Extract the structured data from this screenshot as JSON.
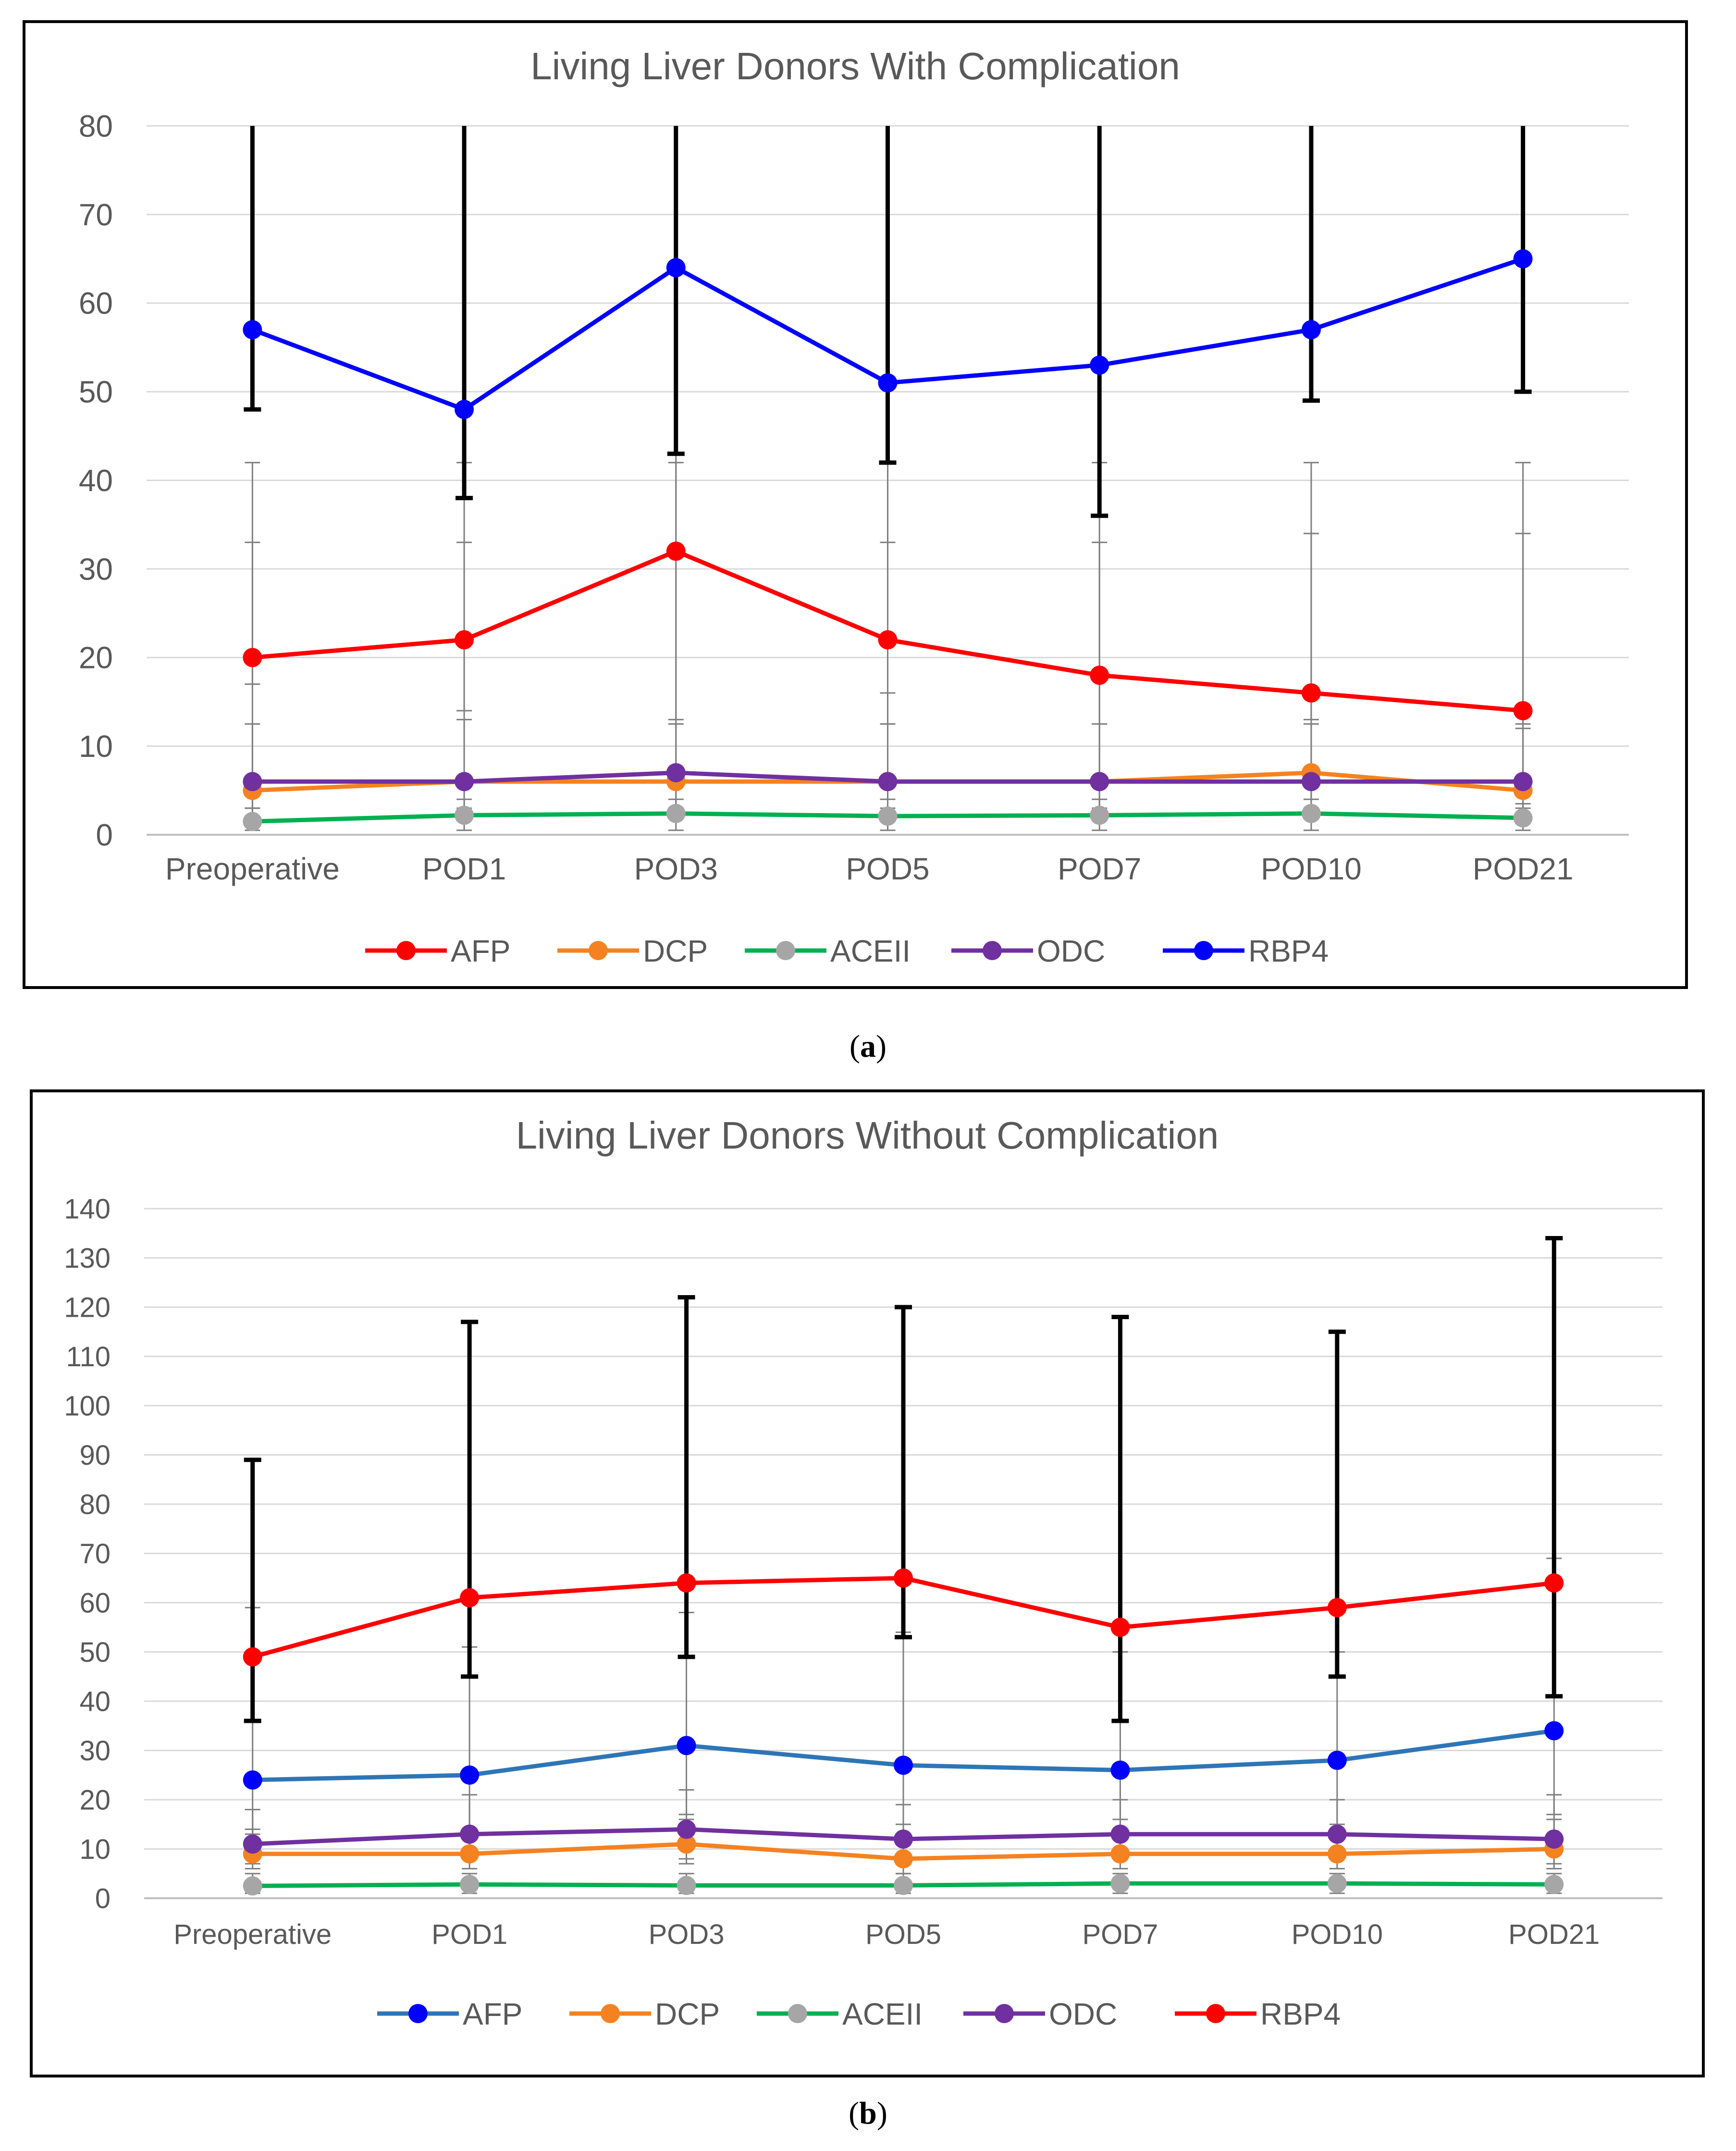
{
  "chart_data": [
    {
      "type": "line",
      "title": "Living Liver Donors With Complication",
      "categories": [
        "Preoperative",
        "POD1",
        "POD3",
        "POD5",
        "POD7",
        "POD10",
        "POD21"
      ],
      "ylim": [
        0,
        80
      ],
      "yticks": [
        0,
        10,
        20,
        30,
        40,
        50,
        60,
        70,
        80
      ],
      "grid": true,
      "legend": "bottom",
      "xlabel": "",
      "ylabel": "",
      "series": [
        {
          "name": "AFP",
          "color": "#ff0000",
          "values": [
            20,
            22,
            32,
            22,
            18,
            16,
            14
          ],
          "err_low": [
            17,
            14,
            13,
            16,
            12.5,
            13,
            12.5
          ],
          "err_high": [
            33,
            33,
            42,
            33,
            33,
            34,
            34
          ]
        },
        {
          "name": "DCP",
          "color": "#f58220",
          "values": [
            5,
            6,
            6,
            6,
            6,
            7,
            5
          ],
          "err_low": [
            3,
            3,
            3,
            3,
            3,
            3,
            3
          ],
          "err_high": [
            12.5,
            13,
            12.5,
            12.5,
            12.5,
            12.5,
            12
          ]
        },
        {
          "name": "ACEII",
          "color": "#00b050",
          "marker": "#a6a6a6",
          "values": [
            1.5,
            2.2,
            2.4,
            2.1,
            2.2,
            2.4,
            1.9
          ],
          "err_low": [
            0.5,
            0.5,
            0.5,
            0.5,
            0.5,
            0.5,
            0.5
          ],
          "err_high": [
            3,
            4,
            4,
            4,
            4,
            4,
            3.5
          ]
        },
        {
          "name": "ODC",
          "color": "#7030a0",
          "values": [
            6,
            6,
            7,
            6,
            6,
            6,
            6
          ],
          "err_low": [
            2,
            2,
            2,
            2,
            2,
            2,
            2
          ],
          "err_high": [
            42,
            42,
            43,
            42,
            42,
            42,
            42
          ]
        },
        {
          "name": "RBP4",
          "color": "#0000ff",
          "values": [
            57,
            48,
            64,
            51,
            53,
            57,
            65
          ],
          "err_low": [
            48,
            38,
            43,
            42,
            36,
            49,
            50
          ],
          "err_high": [
            80,
            80,
            80,
            80,
            80,
            80,
            80
          ]
        }
      ]
    },
    {
      "type": "line",
      "title": "Living Liver Donors Without Complication",
      "categories": [
        "Preoperative",
        "POD1",
        "POD3",
        "POD5",
        "POD7",
        "POD10",
        "POD21"
      ],
      "ylim": [
        0,
        140
      ],
      "yticks": [
        0,
        10,
        20,
        30,
        40,
        50,
        60,
        70,
        80,
        90,
        100,
        110,
        120,
        130,
        140
      ],
      "grid": true,
      "legend": "bottom",
      "xlabel": "",
      "ylabel": "",
      "series": [
        {
          "name": "AFP",
          "color": "#2e75b6",
          "marker": "#0000ff",
          "values": [
            24,
            25,
            31,
            27,
            26,
            28,
            34
          ],
          "err_low": [
            13,
            13,
            17,
            15,
            16,
            15,
            17
          ],
          "err_high": [
            59,
            51,
            58,
            54,
            50,
            50,
            69
          ]
        },
        {
          "name": "DCP",
          "color": "#f58220",
          "values": [
            9,
            9,
            11,
            8,
            9,
            9,
            10
          ],
          "err_low": [
            6,
            6,
            7,
            5,
            6,
            6,
            6
          ],
          "err_high": [
            14,
            14,
            16,
            13,
            13,
            14,
            16
          ]
        },
        {
          "name": "ACEII",
          "color": "#00b050",
          "marker": "#a6a6a6",
          "values": [
            2.5,
            2.8,
            2.6,
            2.6,
            3,
            3,
            2.8
          ],
          "err_low": [
            1,
            1,
            1,
            1,
            1,
            1,
            1
          ],
          "err_high": [
            5,
            5,
            5,
            5,
            5,
            5,
            5
          ]
        },
        {
          "name": "ODC",
          "color": "#7030a0",
          "values": [
            11,
            13,
            14,
            12,
            13,
            13,
            12
          ],
          "err_low": [
            7,
            8,
            8,
            7,
            8,
            8,
            7
          ],
          "err_high": [
            18,
            21,
            22,
            19,
            20,
            20,
            21
          ]
        },
        {
          "name": "RBP4",
          "color": "#ff0000",
          "values": [
            49,
            61,
            64,
            65,
            55,
            59,
            64
          ],
          "err_low": [
            36,
            45,
            49,
            53,
            36,
            45,
            41
          ],
          "err_high": [
            89,
            117,
            122,
            120,
            118,
            115,
            134
          ]
        }
      ]
    }
  ],
  "captions": [
    "a",
    "b"
  ]
}
